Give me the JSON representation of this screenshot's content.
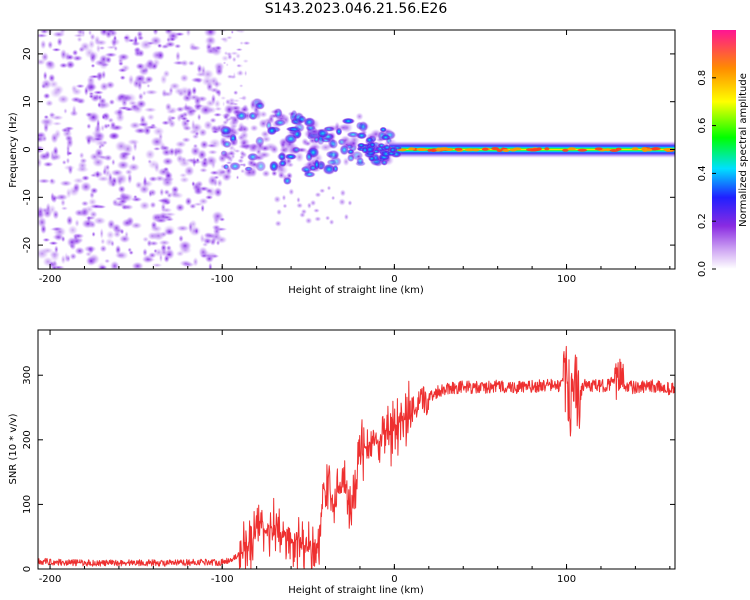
{
  "title": "S143.2023.046.21.56.E26",
  "colors": {
    "snr_line": "#ee3030",
    "spectrogram_background": "#ffffff",
    "axis": "#000000"
  },
  "chart_data": [
    {
      "type": "heatmap",
      "name": "spectrogram",
      "xlabel": "Height of straight line (km)",
      "ylabel": "Frequency (Hz)",
      "xlim": [
        -207,
        163
      ],
      "ylim": [
        -25,
        25
      ],
      "xticks": [
        -200,
        -100,
        0,
        100
      ],
      "yticks": [
        -20,
        -10,
        0,
        10,
        20
      ],
      "colorbar": {
        "label": "Normalized spectral amplitude",
        "range": [
          0,
          1
        ],
        "ticks": [
          "0.0",
          "0.2",
          "0.4",
          "0.6",
          "0.8"
        ],
        "colormap": [
          "#ffffff",
          "#cfa6f3",
          "#8a2be2",
          "#2020ff",
          "#00e0ff",
          "#00ff00",
          "#ffff00",
          "#ff8c00",
          "#ff1493"
        ]
      },
      "regions": [
        {
          "description": "broadband noise",
          "x_range": [
            -207,
            -100
          ],
          "freq_range": [
            -25,
            25
          ],
          "amplitude": 0.05
        },
        {
          "description": "transition",
          "x_range": [
            -100,
            0
          ],
          "freq_range": [
            -15,
            12
          ],
          "amplitude": 0.3
        },
        {
          "description": "carrier line",
          "x_range": [
            0,
            163
          ],
          "freq": 0,
          "amplitude": 0.9
        }
      ]
    },
    {
      "type": "line",
      "name": "snr",
      "xlabel": "Height of straight line (km)",
      "ylabel": "SNR (10 * v/v)",
      "xlim": [
        -207,
        163
      ],
      "ylim": [
        0,
        370
      ],
      "xticks": [
        -200,
        -100,
        0,
        100
      ],
      "yticks": [
        0,
        100,
        200,
        300
      ],
      "series": [
        {
          "name": "SNR",
          "x": [
            -207,
            -190,
            -170,
            -150,
            -130,
            -110,
            -100,
            -95,
            -90,
            -85,
            -80,
            -75,
            -70,
            -65,
            -60,
            -55,
            -50,
            -45,
            -40,
            -35,
            -30,
            -25,
            -20,
            -15,
            -10,
            -5,
            0,
            5,
            10,
            15,
            20,
            25,
            30,
            40,
            50,
            60,
            70,
            80,
            90,
            95,
            100,
            103,
            105,
            107,
            110,
            120,
            130,
            132,
            134,
            140,
            150,
            163
          ],
          "y": [
            12,
            10,
            9,
            10,
            9,
            11,
            10,
            15,
            22,
            35,
            60,
            70,
            55,
            60,
            40,
            45,
            30,
            35,
            130,
            100,
            140,
            80,
            180,
            190,
            200,
            215,
            220,
            230,
            240,
            255,
            265,
            275,
            280,
            282,
            280,
            283,
            281,
            282,
            285,
            283,
            290,
            250,
            300,
            260,
            285,
            283,
            290,
            310,
            285,
            280,
            283,
            278
          ]
        }
      ]
    }
  ]
}
